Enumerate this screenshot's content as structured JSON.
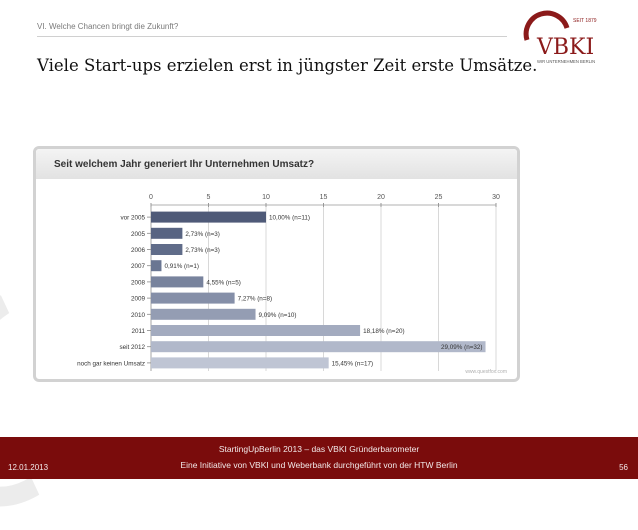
{
  "header": {
    "section": "VI. Welche Chancen bringt die Zukunft?",
    "title": "Viele Start-ups erzielen erst in jüngster Zeit erste Umsätze."
  },
  "logo": {
    "since": "SEIT 1879",
    "name": "VBKI",
    "tagline": "WIR UNTERNEHMEN BERLIN",
    "brand_color": "#8b1a1a"
  },
  "chart_data": {
    "type": "bar",
    "orientation": "horizontal",
    "title": "Seit welchem Jahr generiert Ihr Unternehmen Umsatz?",
    "categories": [
      "vor 2005",
      "2005",
      "2006",
      "2007",
      "2008",
      "2009",
      "2010",
      "2011",
      "seit 2012",
      "noch gar keinen Umsatz"
    ],
    "values": [
      10.0,
      2.73,
      2.73,
      0.91,
      4.55,
      7.27,
      9.09,
      18.18,
      29.09,
      15.45
    ],
    "data_labels": [
      "10,00% (n=11)",
      "2,73% (n=3)",
      "2,73% (n=3)",
      "0,91% (n=1)",
      "4,55% (n=5)",
      "7,27% (n=8)",
      "9,09% (n=10)",
      "18,18% (n=20)",
      "29,09% (n=32)",
      "15,45% (n=17)"
    ],
    "bar_colors": [
      "#4f5a78",
      "#586482",
      "#606c89",
      "#6a7692",
      "#78839d",
      "#858fa8",
      "#949db3",
      "#a3abbf",
      "#b1b8ca",
      "#bfc5d4"
    ],
    "xlim": [
      0,
      30
    ],
    "xticks": [
      0,
      5,
      10,
      15,
      20,
      25,
      30
    ],
    "grid": true,
    "legend": "none",
    "source": "www.questfox.com"
  },
  "footer": {
    "date": "12.01.2013",
    "line1": "StartingUpBerlin 2013 – das VBKI Gründerbarometer",
    "line2": "Eine Initiative von VBKI und Weberbank durchgeführt von der HTW Berlin",
    "page": "56",
    "color": "#7a0c0c"
  }
}
